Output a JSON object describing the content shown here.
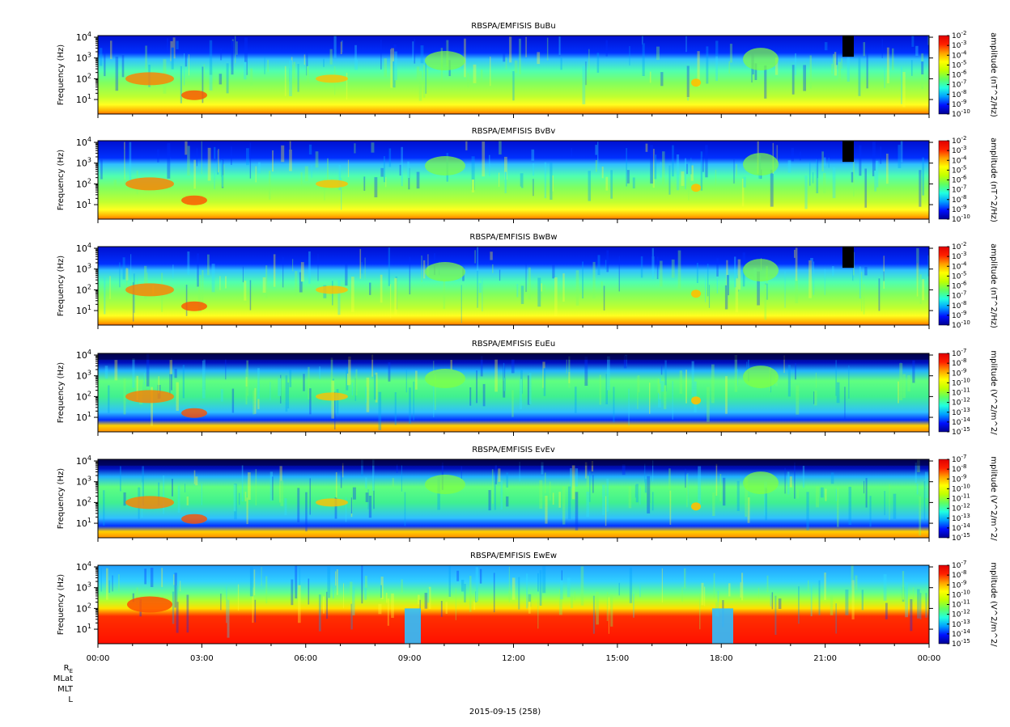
{
  "chart_data": {
    "type": "heatmap",
    "date_label": "2015-09-15 (258)",
    "x": {
      "tick_labels": [
        "00:00",
        "03:00",
        "06:00",
        "09:00",
        "12:00",
        "15:00",
        "18:00",
        "21:00",
        "00:00"
      ],
      "range_hours": [
        0,
        24
      ]
    },
    "ephemeris_rows": [
      "R",
      "MLat",
      "MLT",
      "L"
    ],
    "ephemeris_subscript": "E",
    "panels": [
      {
        "title": "RBSPA/EMFISIS  BuBu",
        "ylabel": "Frequency (Hz)",
        "y_scale": "log",
        "ylim": [
          2,
          12000
        ],
        "y_ticks": [
          1,
          2,
          3,
          4
        ],
        "colorbar_label": "amplitude (nT^2/Hz)",
        "colorbar_range_exp": [
          -10,
          -2
        ],
        "colorbar_ticks_exp": [
          -2,
          -3,
          -4,
          -5,
          -6,
          -7,
          -8,
          -9,
          -10
        ]
      },
      {
        "title": "RBSPA/EMFISIS  BvBv",
        "ylabel": "Frequency (Hz)",
        "y_scale": "log",
        "ylim": [
          2,
          12000
        ],
        "y_ticks": [
          1,
          2,
          3,
          4
        ],
        "colorbar_label": "amplitude (nT^2/Hz)",
        "colorbar_range_exp": [
          -10,
          -2
        ],
        "colorbar_ticks_exp": [
          -2,
          -3,
          -4,
          -5,
          -6,
          -7,
          -8,
          -9,
          -10
        ]
      },
      {
        "title": "RBSPA/EMFISIS  BwBw",
        "ylabel": "Frequency (Hz)",
        "y_scale": "log",
        "ylim": [
          2,
          12000
        ],
        "y_ticks": [
          1,
          2,
          3,
          4
        ],
        "colorbar_label": "amplitude (nT^2/Hz)",
        "colorbar_range_exp": [
          -10,
          -2
        ],
        "colorbar_ticks_exp": [
          -2,
          -3,
          -4,
          -5,
          -6,
          -7,
          -8,
          -9,
          -10
        ]
      },
      {
        "title": "RBSPA/EMFISIS  EuEu",
        "ylabel": "Frequency (Hz)",
        "y_scale": "log",
        "ylim": [
          2,
          12000
        ],
        "y_ticks": [
          1,
          2,
          3,
          4
        ],
        "colorbar_label": "mplitude (V^2/m^2/",
        "colorbar_range_exp": [
          -15,
          -7
        ],
        "colorbar_ticks_exp": [
          -7,
          -8,
          -9,
          -10,
          -11,
          -12,
          -13,
          -14,
          -15
        ]
      },
      {
        "title": "RBSPA/EMFISIS  EvEv",
        "ylabel": "Frequency (Hz)",
        "y_scale": "log",
        "ylim": [
          2,
          12000
        ],
        "y_ticks": [
          1,
          2,
          3,
          4
        ],
        "colorbar_label": "mplitude (V^2/m^2/",
        "colorbar_range_exp": [
          -15,
          -7
        ],
        "colorbar_ticks_exp": [
          -7,
          -8,
          -9,
          -10,
          -11,
          -12,
          -13,
          -14,
          -15
        ]
      },
      {
        "title": "RBSPA/EMFISIS  EwEw",
        "ylabel": "Frequency (Hz)",
        "y_scale": "log",
        "ylim": [
          2,
          12000
        ],
        "y_ticks": [
          1,
          2,
          3,
          4
        ],
        "colorbar_label": "mplitude (V^2/m^2/",
        "colorbar_range_exp": [
          -15,
          -7
        ],
        "colorbar_ticks_exp": [
          -7,
          -8,
          -9,
          -10,
          -11,
          -12,
          -13,
          -14,
          -15
        ]
      }
    ],
    "colormap": [
      "#000090",
      "#0010ff",
      "#00a0ff",
      "#20ffe0",
      "#60ff60",
      "#c0ff00",
      "#ffff00",
      "#ffa000",
      "#ff2000",
      "#e00000"
    ]
  }
}
